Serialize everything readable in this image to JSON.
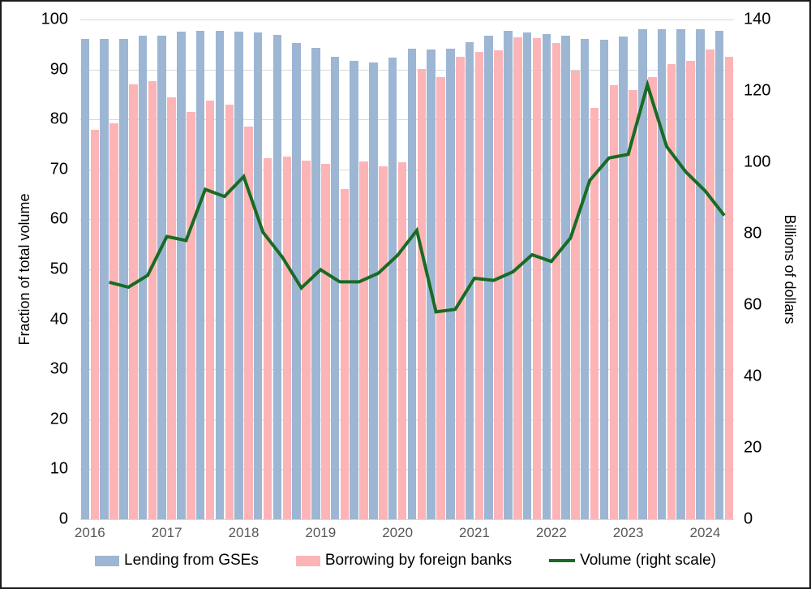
{
  "chart_data": {
    "type": "combo-bar-line",
    "title": "",
    "categories": [
      "2016 Q1",
      "2016 Q2",
      "2016 Q3",
      "2016 Q4",
      "2017 Q1",
      "2017 Q2",
      "2017 Q3",
      "2017 Q4",
      "2018 Q1",
      "2018 Q2",
      "2018 Q3",
      "2018 Q4",
      "2019 Q1",
      "2019 Q2",
      "2019 Q3",
      "2019 Q4",
      "2020 Q1",
      "2020 Q2",
      "2020 Q3",
      "2020 Q4",
      "2021 Q1",
      "2021 Q2",
      "2021 Q3",
      "2021 Q4",
      "2022 Q1",
      "2022 Q2",
      "2022 Q3",
      "2022 Q4",
      "2023 Q1",
      "2023 Q2",
      "2023 Q3",
      "2023 Q4",
      "2024 Q1",
      "2024 Q2"
    ],
    "x_year_labels": [
      "2016",
      "2017",
      "2018",
      "2019",
      "2020",
      "2021",
      "2022",
      "2023",
      "2024"
    ],
    "series": [
      {
        "name": "Lending from GSEs",
        "type": "bar",
        "axis": "left",
        "color": "#9db6d3",
        "values": [
          96.1,
          96.1,
          96.1,
          96.7,
          96.8,
          97.5,
          97.8,
          97.7,
          97.6,
          97.4,
          96.9,
          95.3,
          94.3,
          92.6,
          91.7,
          91.4,
          92.4,
          94.1,
          94.0,
          94.2,
          95.4,
          96.7,
          97.7,
          97.4,
          97.1,
          96.8,
          96.1,
          95.9,
          96.6,
          98.0,
          98.0,
          98.0,
          98.0,
          97.8
        ]
      },
      {
        "name": "Borrowing by foreign banks",
        "type": "bar",
        "axis": "left",
        "color": "#fcb4b7",
        "values": [
          78.0,
          79.3,
          87.0,
          87.6,
          84.4,
          81.5,
          83.8,
          82.9,
          78.6,
          72.3,
          72.5,
          71.8,
          71.1,
          66.1,
          71.6,
          70.7,
          71.4,
          90.1,
          88.4,
          92.6,
          93.5,
          93.9,
          96.5,
          96.2,
          95.3,
          89.7,
          82.3,
          86.8,
          85.9,
          88.4,
          91.0,
          91.8,
          94.0,
          92.5
        ]
      },
      {
        "name": "Volume (right scale)",
        "type": "line",
        "axis": "right",
        "color": "#196b24",
        "values": [
          null,
          66.4,
          65.0,
          68.3,
          79.2,
          78.1,
          92.4,
          90.4,
          96.0,
          80.4,
          73.5,
          64.8,
          69.9,
          66.5,
          66.5,
          68.9,
          73.9,
          80.9,
          58.1,
          58.8,
          67.5,
          66.9,
          69.3,
          74.1,
          72.2,
          78.8,
          94.9,
          101.2,
          102.2,
          121.7,
          104.4,
          97.3,
          92.0,
          85.1
        ]
      }
    ],
    "ylabel_left": "Fraction of total volume",
    "ylabel_right": "Billions of dollars",
    "yaxis_left": {
      "min": 0,
      "max": 100,
      "ticks": [
        0,
        10,
        20,
        30,
        40,
        50,
        60,
        70,
        80,
        90,
        100
      ]
    },
    "yaxis_right": {
      "min": 0,
      "max": 140,
      "ticks": [
        0,
        20,
        40,
        60,
        80,
        100,
        120,
        140
      ]
    },
    "grid": true,
    "legend_position": "bottom"
  }
}
